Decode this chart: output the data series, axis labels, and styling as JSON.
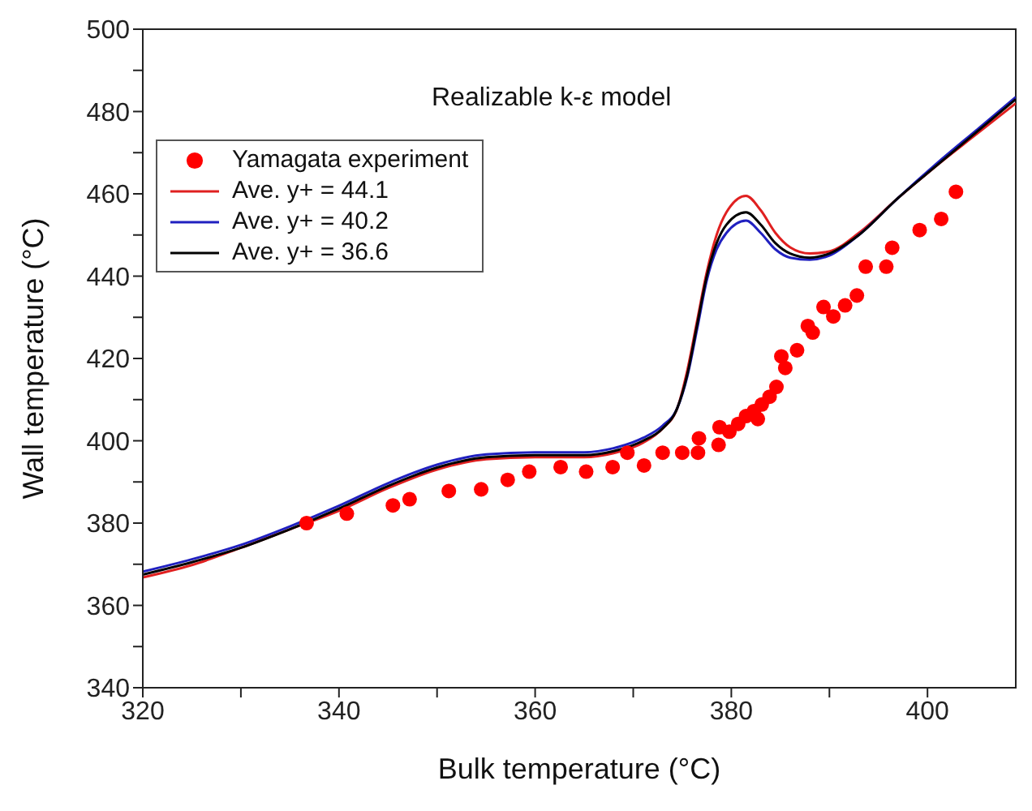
{
  "chart_data": {
    "type": "line",
    "xlabel": "Bulk temperature (°C)",
    "ylabel": "Wall temperature (°C)",
    "annotations": [
      "Realizable k-ε model"
    ],
    "xlim": [
      320,
      409
    ],
    "xticks": [
      320,
      {
        "value": 330,
        "label": null
      },
      340,
      {
        "value": 350,
        "label": null
      },
      360,
      {
        "value": 370,
        "label": null
      },
      380,
      {
        "value": 390,
        "label": null
      },
      400
    ],
    "ylim": [
      340,
      500
    ],
    "yticks": [
      340,
      {
        "value": 350,
        "label": null
      },
      360,
      {
        "value": 370,
        "label": null
      },
      380,
      {
        "value": 390,
        "label": null
      },
      400,
      {
        "value": 410,
        "label": null
      },
      420,
      {
        "value": 430,
        "label": null
      },
      440,
      {
        "value": 450,
        "label": null
      },
      460,
      {
        "value": 470,
        "label": null
      },
      480,
      {
        "value": 490,
        "label": null
      },
      500
    ],
    "grid": false,
    "legend": "top left",
    "series": [
      {
        "name": "Yamagata experiment",
        "type": "scatter",
        "marker": "circle",
        "color": "#ff0000",
        "x": [
          336.7,
          340.8,
          345.5,
          347.2,
          351.2,
          354.5,
          357.2,
          359.4,
          362.6,
          365.2,
          367.9,
          369.4,
          371.1,
          373,
          375,
          376.6,
          376.7,
          378.7,
          378.8,
          379.8,
          380.7,
          381.5,
          382.3,
          382.7,
          383.1,
          383.9,
          384.6,
          385.1,
          385.5,
          386.7,
          387.8,
          388.3,
          389.4,
          390.4,
          391.6,
          392.8,
          393.7,
          395.8,
          396.4,
          399.2,
          401.4,
          402.9
        ],
        "values": [
          380,
          382.3,
          384.3,
          385.8,
          387.8,
          388.2,
          390.5,
          392.5,
          393.6,
          392.5,
          393.6,
          397.1,
          394,
          397.1,
          397.1,
          397.1,
          400.6,
          399,
          403.3,
          402.2,
          404.1,
          406,
          407.2,
          405.3,
          408.8,
          410.7,
          413.1,
          420.5,
          417.7,
          422,
          427.9,
          426.3,
          432.5,
          430.2,
          432.9,
          435.3,
          442.3,
          442.3,
          446.9,
          451.2,
          453.9,
          460.5
        ]
      },
      {
        "name": "Ave. y+ = 44.1",
        "color": "#e02020",
        "x": [
          320,
          325,
          330,
          335,
          340,
          345,
          350,
          355,
          360,
          365,
          368,
          371,
          373,
          374.5,
          375.5,
          376.5,
          377.5,
          378.5,
          379.5,
          381.5,
          383,
          384.5,
          386,
          388,
          390,
          393,
          397,
          401,
          405,
          409
        ],
        "values": [
          366.8,
          369.8,
          374,
          378.5,
          383,
          388.5,
          393,
          395.5,
          396,
          396,
          397,
          399.5,
          403,
          408,
          417,
          429,
          441,
          450,
          455.5,
          459.5,
          456,
          450.5,
          447,
          445.5,
          446,
          450.5,
          459,
          467,
          474.5,
          482
        ]
      },
      {
        "name": "Ave. y+ = 40.2",
        "color": "#2020c0",
        "x": [
          320,
          325,
          330,
          335,
          340,
          345,
          350,
          355,
          360,
          365,
          368,
          371,
          373,
          374.5,
          375.5,
          376.5,
          377.5,
          378.5,
          379.5,
          381.5,
          383,
          384.5,
          386,
          388,
          390,
          393,
          397,
          401,
          405,
          409
        ],
        "values": [
          368.2,
          371.2,
          374.7,
          379.2,
          384.2,
          389.7,
          394.2,
          396.7,
          397.2,
          397.2,
          398.2,
          400.7,
          403.7,
          408,
          415.5,
          427,
          439,
          446.5,
          450.5,
          453.5,
          450.5,
          446.5,
          444.5,
          444,
          445,
          450,
          459,
          467.5,
          475.5,
          483.5
        ]
      },
      {
        "name": "Ave. y+ = 36.6",
        "color": "#000000",
        "x": [
          320,
          325,
          330,
          335,
          340,
          345,
          350,
          355,
          360,
          365,
          368,
          371,
          373,
          374.5,
          375.5,
          376.5,
          377.5,
          378.5,
          379.5,
          381.5,
          383,
          384.5,
          386,
          388,
          390,
          393,
          397,
          401,
          405,
          409
        ],
        "values": [
          367.5,
          370.5,
          374,
          378.5,
          383.5,
          389,
          393.5,
          396,
          396.5,
          396.5,
          397.5,
          400,
          403,
          408,
          416,
          428,
          440,
          448,
          452.5,
          455.5,
          452.5,
          448,
          445.5,
          444.5,
          445.5,
          450,
          459,
          467,
          475,
          483
        ]
      }
    ]
  }
}
